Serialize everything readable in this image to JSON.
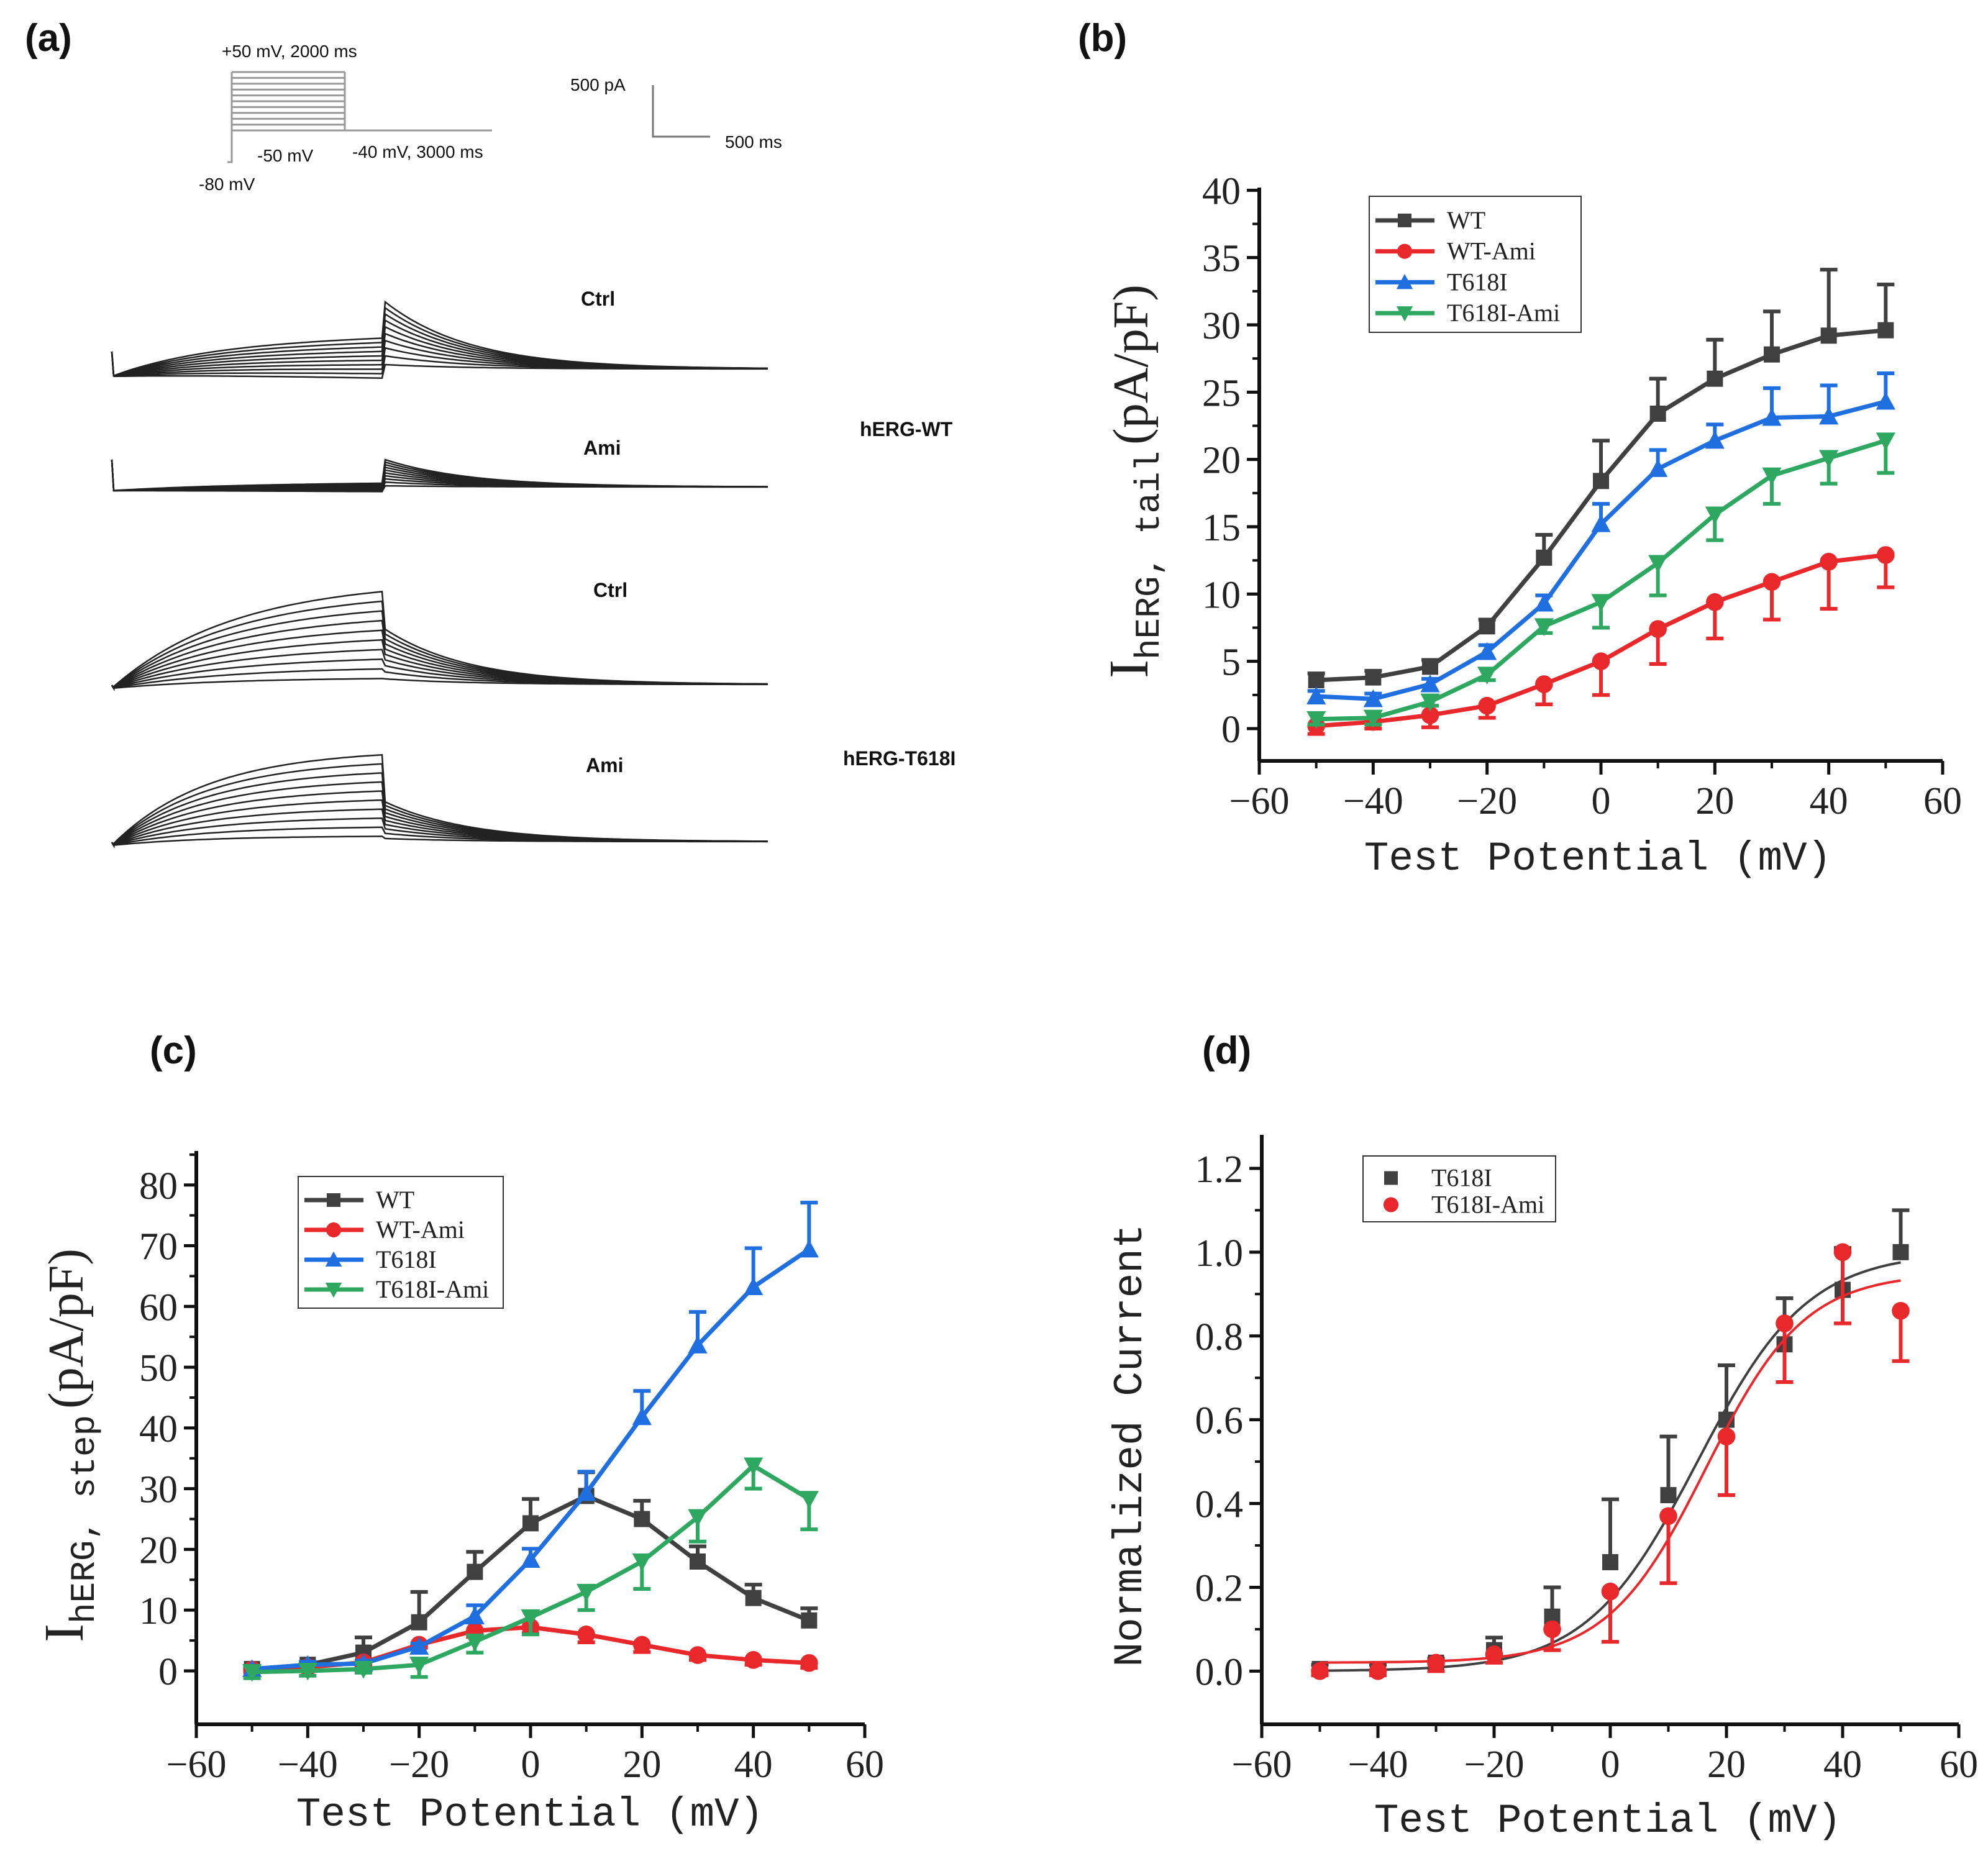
{
  "panels": {
    "a": "(a)",
    "b": "(b)",
    "c": "(c)",
    "d": "(d)"
  },
  "panel_a": {
    "protocol": {
      "top": "+50 mV, 2000 ms",
      "bottom_step": "-50 mV",
      "tail": "-40 mV, 3000 ms",
      "hold": "-80 mV"
    },
    "scale": {
      "current": "500 pA",
      "time": "500 ms"
    },
    "groups": [
      {
        "name": "hERG-WT",
        "conditions": [
          "Ctrl",
          "Ami"
        ]
      },
      {
        "name": "hERG-T618I",
        "conditions": [
          "Ctrl",
          "Ami"
        ]
      }
    ]
  },
  "chart_data": [
    {
      "type": "line",
      "panel": "b",
      "xlabel": "Test Potential (mV)",
      "ylabel_main": "I",
      "ylabel_sub": "hERG, tail",
      "ylabel_unit": "(pA/pF)",
      "xlim": [
        -60,
        60
      ],
      "ylim": [
        -2.4,
        40.2
      ],
      "xticks": [
        "-60",
        "-40",
        "-20",
        "0",
        "20",
        "40",
        "60"
      ],
      "yticks": [
        "0",
        "5",
        "10",
        "15",
        "20",
        "25",
        "30",
        "35",
        "40"
      ],
      "legend_placement": "top-left",
      "x": [
        -50,
        -40,
        -30,
        -20,
        -10,
        0,
        10,
        20,
        30,
        40,
        50
      ],
      "series": [
        {
          "name": "WT",
          "color": "#404040",
          "marker": "square",
          "errbar_direction": "up",
          "values": [
            3.6,
            3.8,
            4.6,
            7.6,
            12.7,
            18.4,
            23.4,
            26.0,
            27.8,
            29.2,
            29.6
          ],
          "err": [
            0.5,
            0.5,
            0.5,
            0.5,
            1.7,
            3.0,
            2.6,
            2.9,
            3.2,
            4.9,
            3.4
          ]
        },
        {
          "name": "WT-Ami",
          "color": "#e8282b",
          "marker": "circle",
          "errbar_direction": "down",
          "values": [
            0.2,
            0.5,
            1.0,
            1.7,
            3.3,
            5.0,
            7.4,
            9.4,
            10.9,
            12.4,
            12.9
          ],
          "err": [
            0.6,
            0.5,
            0.9,
            0.9,
            1.5,
            2.5,
            2.6,
            2.7,
            2.8,
            3.5,
            2.4
          ]
        },
        {
          "name": "T618I",
          "color": "#1f6fe0",
          "marker": "triangle-up",
          "errbar_direction": "up",
          "values": [
            2.4,
            2.2,
            3.3,
            5.7,
            9.3,
            15.2,
            19.3,
            21.4,
            23.1,
            23.2,
            24.3
          ],
          "err": [
            0.4,
            0.4,
            0.4,
            0.5,
            0.6,
            1.5,
            1.4,
            1.2,
            2.2,
            2.3,
            2.1
          ]
        },
        {
          "name": "T618I-Ami",
          "color": "#2ea860",
          "marker": "triangle-down",
          "errbar_direction": "down",
          "values": [
            0.7,
            0.8,
            2.0,
            4.0,
            7.6,
            9.4,
            12.3,
            15.9,
            18.8,
            20.1,
            21.4
          ],
          "err": [
            0.4,
            0.5,
            0.3,
            0.4,
            0.5,
            1.9,
            2.4,
            1.9,
            2.1,
            1.9,
            2.4
          ]
        }
      ]
    },
    {
      "type": "line",
      "panel": "c",
      "xlabel": "Test Potential (mV)",
      "ylabel_main": "I",
      "ylabel_sub": "hERG, step",
      "ylabel_unit": "(pA/pF)",
      "xlim": [
        -60,
        60
      ],
      "ylim": [
        -8.8,
        85.6
      ],
      "xticks": [
        "-60",
        "-40",
        "-20",
        "0",
        "20",
        "40",
        "60"
      ],
      "yticks": [
        "0",
        "10",
        "20",
        "30",
        "40",
        "50",
        "60",
        "70",
        "80"
      ],
      "legend_placement": "top-left",
      "x": [
        -50,
        -40,
        -30,
        -20,
        -10,
        0,
        10,
        20,
        30,
        40,
        50
      ],
      "series": [
        {
          "name": "WT",
          "color": "#404040",
          "marker": "square",
          "errbar_direction": "up",
          "values": [
            0.3,
            1.0,
            3.0,
            8.0,
            16.3,
            24.3,
            28.8,
            25.0,
            18.0,
            12.0,
            8.3
          ],
          "err": [
            0.5,
            0.4,
            2.5,
            5.0,
            3.3,
            4.0,
            3.9,
            3.0,
            2.5,
            2.2,
            2.0
          ]
        },
        {
          "name": "WT-Ami",
          "color": "#e8282b",
          "marker": "circle",
          "errbar_direction": "down",
          "values": [
            0.2,
            0.6,
            1.4,
            4.3,
            6.6,
            7.2,
            6.0,
            4.3,
            2.6,
            1.8,
            1.3
          ],
          "err": [
            0.5,
            0.4,
            0.5,
            0.5,
            1.0,
            1.0,
            1.3,
            1.2,
            0.8,
            0.8,
            0.8
          ]
        },
        {
          "name": "T618I",
          "color": "#1f6fe0",
          "marker": "triangle-up",
          "errbar_direction": "up",
          "values": [
            0.3,
            1.0,
            1.2,
            4.0,
            9.0,
            18.3,
            29.3,
            41.8,
            53.6,
            63.2,
            69.4
          ],
          "err": [
            0.5,
            0.5,
            0.5,
            0.5,
            1.8,
            1.8,
            3.5,
            4.3,
            5.5,
            6.4,
            7.7
          ]
        },
        {
          "name": "T618I-Ami",
          "color": "#2ea860",
          "marker": "triangle-down",
          "errbar_direction": "down",
          "values": [
            -0.2,
            0.0,
            0.3,
            1.0,
            4.8,
            8.8,
            13.0,
            18.0,
            25.3,
            33.8,
            28.3
          ],
          "err": [
            1.0,
            0.8,
            0.6,
            2.0,
            1.8,
            2.8,
            3.0,
            4.5,
            4.0,
            3.8,
            5.0
          ]
        }
      ]
    },
    {
      "type": "scatter",
      "panel": "d",
      "xlabel": "Test Potential (mV)",
      "ylabel": "Normalized Current",
      "xlim": [
        -60,
        60
      ],
      "ylim": [
        -0.127,
        1.28
      ],
      "xticks": [
        "-60",
        "-40",
        "-20",
        "0",
        "20",
        "40",
        "60"
      ],
      "yticks": [
        "0.0",
        "0.2",
        "0.4",
        "0.6",
        "0.8",
        "1.0",
        "1.2"
      ],
      "legend_placement": "top-left",
      "x": [
        -50,
        -40,
        -30,
        -20,
        -10,
        0,
        10,
        20,
        30,
        40,
        50
      ],
      "series": [
        {
          "name": "T618I",
          "color": "#404040",
          "marker": "square",
          "errbar_direction": "up",
          "values": [
            0.005,
            0.005,
            0.02,
            0.05,
            0.13,
            0.26,
            0.42,
            0.6,
            0.78,
            0.91,
            1.0
          ],
          "err": [
            0.01,
            0.01,
            0.01,
            0.03,
            0.07,
            0.15,
            0.14,
            0.13,
            0.11,
            0.1,
            0.1
          ],
          "fit": {
            "model": "boltzmann",
            "bottom": 0.0,
            "top": 1.0,
            "v_half": 15,
            "slope": 9.5
          }
        },
        {
          "name": "T618I-Ami",
          "color": "#e8282b",
          "marker": "circle",
          "errbar_direction": "down",
          "values": [
            0.0,
            0.0,
            0.02,
            0.04,
            0.1,
            0.19,
            0.37,
            0.56,
            0.83,
            1.0,
            0.86
          ],
          "err": [
            0.01,
            0.01,
            0.02,
            0.02,
            0.05,
            0.12,
            0.16,
            0.14,
            0.14,
            0.17,
            0.12
          ],
          "fit": {
            "model": "boltzmann",
            "bottom": 0.02,
            "top": 0.95,
            "v_half": 16.5,
            "slope": 8.5
          }
        }
      ]
    }
  ]
}
